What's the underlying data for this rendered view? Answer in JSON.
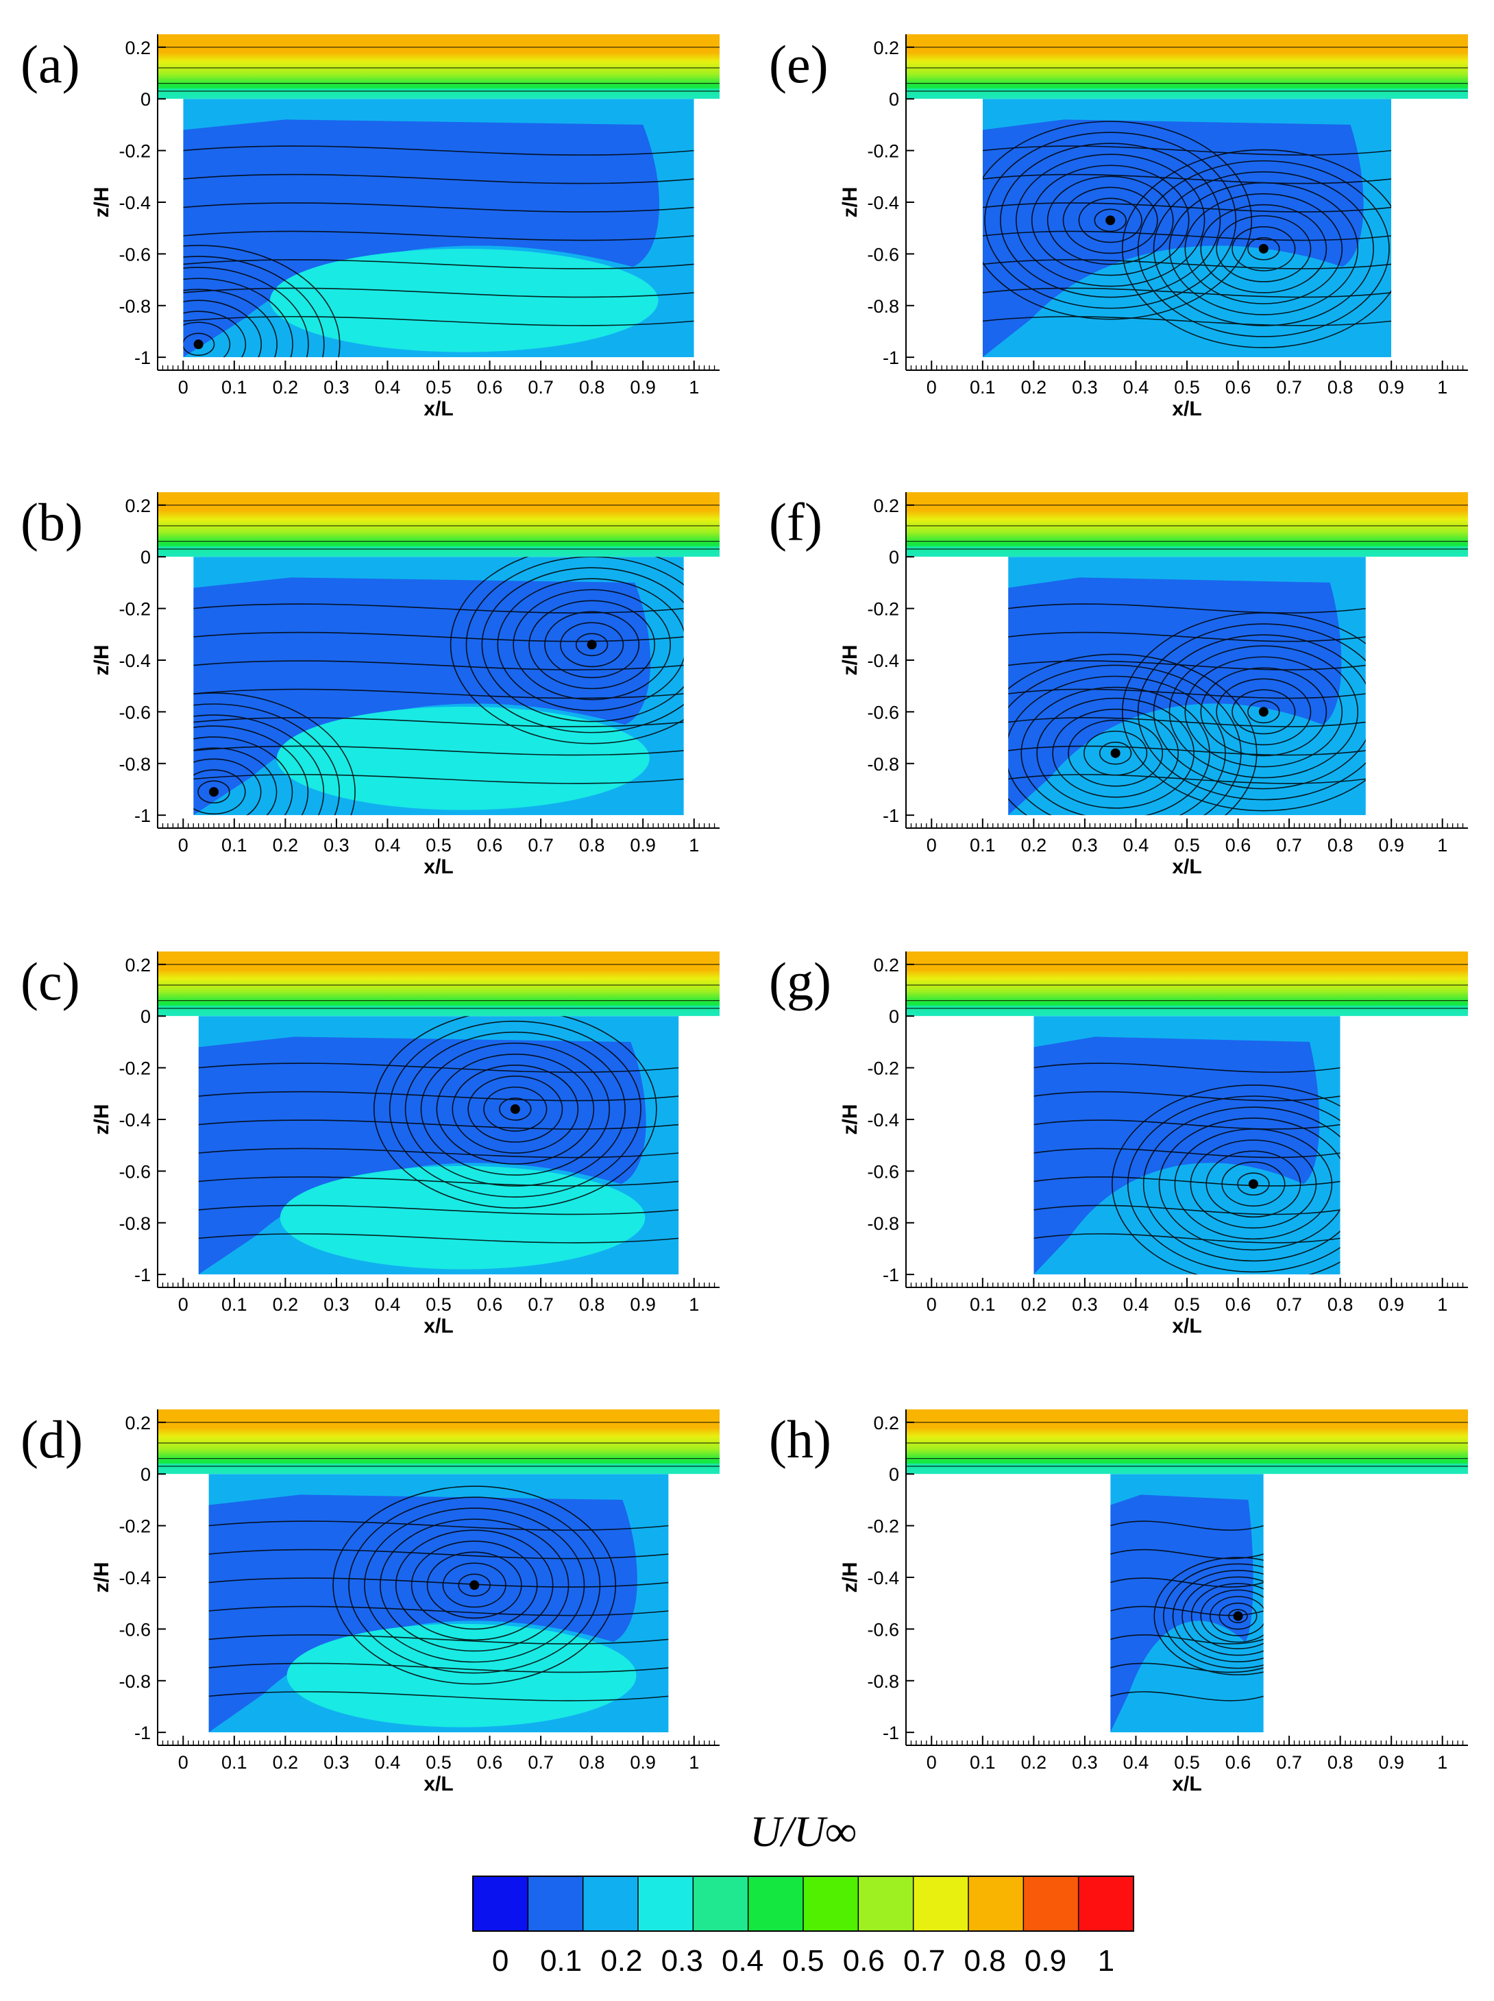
{
  "chart_data": {
    "type": "contour",
    "panels": [
      {
        "label": "(a)",
        "cavity": [
          0.0,
          1.0
        ],
        "xlabel": "x/L",
        "ylabel": "z/H",
        "xlim": [
          -0.05,
          1.05
        ],
        "ylim": [
          -1.05,
          0.25
        ],
        "vortices": [
          {
            "x": 0.03,
            "z": -0.95
          }
        ]
      },
      {
        "label": "(b)",
        "cavity": [
          0.02,
          0.98
        ],
        "xlabel": "x/L",
        "ylabel": "z/H",
        "xlim": [
          -0.05,
          1.05
        ],
        "ylim": [
          -1.05,
          0.25
        ],
        "vortices": [
          {
            "x": 0.8,
            "z": -0.34
          },
          {
            "x": 0.06,
            "z": -0.91
          }
        ]
      },
      {
        "label": "(c)",
        "cavity": [
          0.03,
          0.97
        ],
        "xlabel": "x/L",
        "ylabel": "z/H",
        "xlim": [
          -0.05,
          1.05
        ],
        "ylim": [
          -1.05,
          0.25
        ],
        "vortices": [
          {
            "x": 0.65,
            "z": -0.36
          }
        ]
      },
      {
        "label": "(d)",
        "cavity": [
          0.05,
          0.95
        ],
        "xlabel": "x/L",
        "ylabel": "z/H",
        "xlim": [
          -0.05,
          1.05
        ],
        "ylim": [
          -1.05,
          0.25
        ],
        "vortices": [
          {
            "x": 0.57,
            "z": -0.43
          }
        ]
      },
      {
        "label": "(e)",
        "cavity": [
          0.1,
          0.9
        ],
        "xlabel": "x/L",
        "ylabel": "z/H",
        "xlim": [
          -0.05,
          1.05
        ],
        "ylim": [
          -1.05,
          0.25
        ],
        "vortices": [
          {
            "x": 0.35,
            "z": -0.47
          },
          {
            "x": 0.65,
            "z": -0.58
          }
        ]
      },
      {
        "label": "(f)",
        "cavity": [
          0.15,
          0.85
        ],
        "xlabel": "x/L",
        "ylabel": "z/H",
        "xlim": [
          -0.05,
          1.05
        ],
        "ylim": [
          -1.05,
          0.25
        ],
        "vortices": [
          {
            "x": 0.36,
            "z": -0.76
          },
          {
            "x": 0.65,
            "z": -0.6
          }
        ]
      },
      {
        "label": "(g)",
        "cavity": [
          0.2,
          0.8
        ],
        "xlabel": "x/L",
        "ylabel": "z/H",
        "xlim": [
          -0.05,
          1.05
        ],
        "ylim": [
          -1.05,
          0.25
        ],
        "vortices": [
          {
            "x": 0.63,
            "z": -0.65
          }
        ]
      },
      {
        "label": "(h)",
        "cavity": [
          0.35,
          0.65
        ],
        "xlabel": "x/L",
        "ylabel": "z/H",
        "xlim": [
          -0.05,
          1.05
        ],
        "ylim": [
          -1.05,
          0.25
        ],
        "vortices": [
          {
            "x": 0.6,
            "z": -0.55
          }
        ]
      }
    ],
    "xticks": [
      "0",
      "0.1",
      "0.2",
      "0.3",
      "0.4",
      "0.5",
      "0.6",
      "0.7",
      "0.8",
      "0.9",
      "1"
    ],
    "yticks": [
      "0.2",
      "0",
      "-0.2",
      "-0.4",
      "-0.6",
      "-0.8",
      "-1"
    ],
    "colorbar": {
      "title": "U/U∞",
      "range": [
        0,
        1
      ],
      "ticks": [
        "0",
        "0.1",
        "0.2",
        "0.3",
        "0.4",
        "0.5",
        "0.6",
        "0.7",
        "0.8",
        "0.9",
        "1"
      ],
      "colors": [
        "#0b12f0",
        "#1a66ee",
        "#10b0f0",
        "#19eae4",
        "#20e890",
        "#14e840",
        "#50f000",
        "#9ef020",
        "#e8f010",
        "#f8b400",
        "#f85a08",
        "#ff1010"
      ]
    }
  }
}
